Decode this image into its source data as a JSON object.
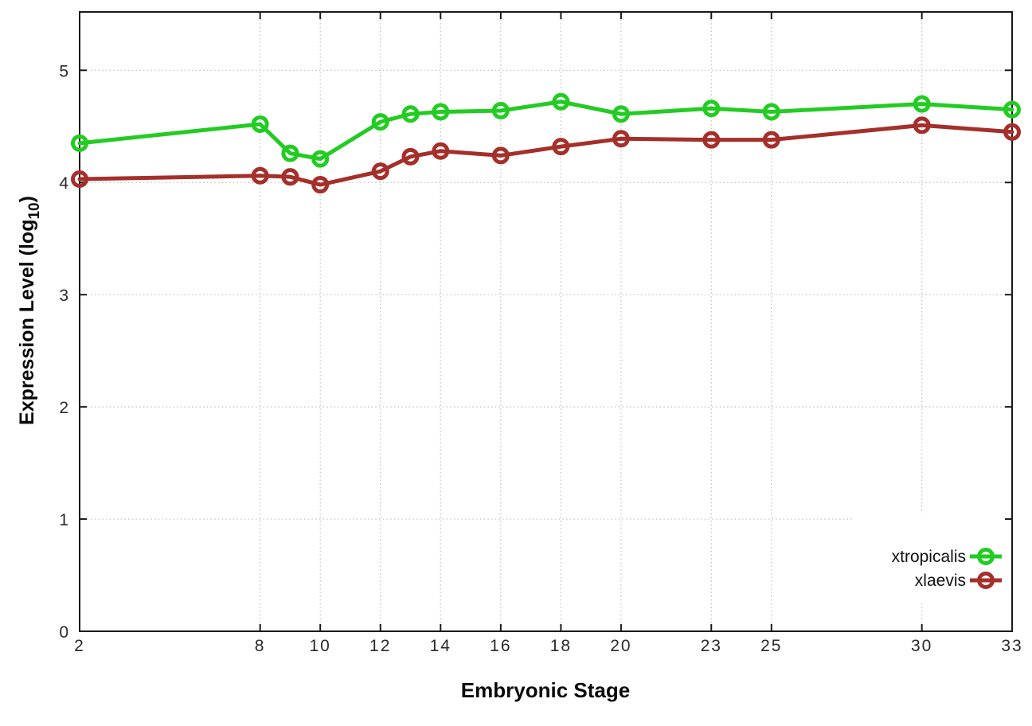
{
  "chart_data": {
    "type": "line",
    "title": "",
    "xlabel": "Embryonic Stage",
    "ylabel": "Expression Level (log10)",
    "ylabel_parts": {
      "pre": "Expression Level (log",
      "sub": "10",
      "post": ")"
    },
    "xlim": [
      2,
      33
    ],
    "ylim": [
      0,
      5.52
    ],
    "x_ticks": [
      2,
      8,
      10,
      12,
      14,
      16,
      18,
      20,
      23,
      25,
      30,
      33
    ],
    "y_ticks": [
      0,
      1,
      2,
      3,
      4,
      5
    ],
    "grid": true,
    "grid_style": "dotted",
    "legend_position": "bottom-right",
    "x": [
      2,
      8,
      9,
      10,
      12,
      13,
      14,
      16,
      18,
      20,
      23,
      25,
      30,
      33
    ],
    "series": [
      {
        "name": "xtropicalis",
        "color": "#22cc22",
        "marker": "open-circle",
        "values": [
          4.35,
          4.52,
          4.26,
          4.21,
          4.54,
          4.61,
          4.63,
          4.64,
          4.72,
          4.61,
          4.66,
          4.63,
          4.7,
          4.65
        ]
      },
      {
        "name": "xlaevis",
        "color": "#a52f2a",
        "marker": "open-circle",
        "values": [
          4.03,
          4.06,
          4.05,
          3.98,
          4.1,
          4.23,
          4.28,
          4.24,
          4.32,
          4.39,
          4.38,
          4.38,
          4.51,
          4.45
        ]
      }
    ],
    "colors": {
      "border": "#1a1a1a",
      "gridline": "#bdbdbd",
      "background": "#ffffff"
    }
  }
}
